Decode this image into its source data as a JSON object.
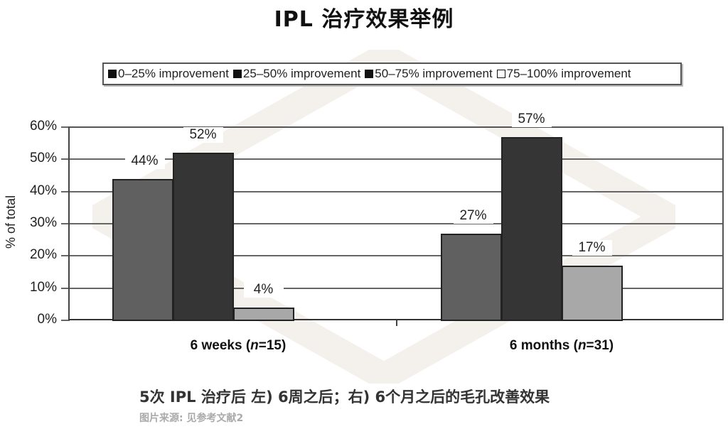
{
  "title": "IPL 治疗效果举例",
  "legend": [
    {
      "label": "0–25% improvement",
      "color": "#111111"
    },
    {
      "label": "25–50% improvement",
      "color": "#111111"
    },
    {
      "label": "50–75% improvement",
      "color": "#111111"
    },
    {
      "label": "75–100% improvement",
      "color": "#ffffff"
    }
  ],
  "y_axis": {
    "label": "% of total",
    "ticks": [
      "60%",
      "50%",
      "40%",
      "30%",
      "20%",
      "10%",
      "0%"
    ]
  },
  "groups": [
    {
      "label_prefix": "6 weeks (",
      "label_n": "n",
      "label_suffix": "=15)",
      "bars": [
        {
          "series": "25–50% improvement",
          "value": 44,
          "label": "44%",
          "color": "#606060"
        },
        {
          "series": "50–75% improvement",
          "value": 52,
          "label": "52%",
          "color": "#353535"
        },
        {
          "series": "75–100% improvement",
          "value": 4,
          "label": "4%",
          "color": "#a8a8a8"
        }
      ]
    },
    {
      "label_prefix": "6 months (",
      "label_n": "n",
      "label_suffix": "=31)",
      "bars": [
        {
          "series": "25–50% improvement",
          "value": 27,
          "label": "27%",
          "color": "#606060"
        },
        {
          "series": "50–75% improvement",
          "value": 57,
          "label": "57%",
          "color": "#353535"
        },
        {
          "series": "75–100% improvement",
          "value": 17,
          "label": "17%",
          "color": "#a8a8a8"
        }
      ]
    }
  ],
  "caption": "5次 IPL 治疗后 左) 6周之后；右) 6个月之后的毛孔改善效果",
  "source": "图片来源: 见参考文献2",
  "chart_data": {
    "type": "bar",
    "title": "IPL 治疗效果举例",
    "categories": [
      "6 weeks (n=15)",
      "6 months (n=31)"
    ],
    "series": [
      {
        "name": "0–25% improvement",
        "values": [
          0,
          0
        ]
      },
      {
        "name": "25–50% improvement",
        "values": [
          44,
          27
        ]
      },
      {
        "name": "50–75% improvement",
        "values": [
          52,
          57
        ]
      },
      {
        "name": "75–100% improvement",
        "values": [
          4,
          17
        ]
      }
    ],
    "data_labels": [
      [
        "44%",
        "52%",
        "4%"
      ],
      [
        "27%",
        "57%",
        "17%"
      ]
    ],
    "xlabel": "",
    "ylabel": "% of total",
    "yticks": [
      "0%",
      "10%",
      "20%",
      "30%",
      "40%",
      "50%",
      "60%"
    ],
    "ylim": [
      0,
      60
    ],
    "grid": true,
    "legend_position": "top",
    "caption": "5次 IPL 治疗后 左) 6周之后；右) 6个月之后的毛孔改善效果",
    "source": "图片来源: 见参考文献2"
  }
}
